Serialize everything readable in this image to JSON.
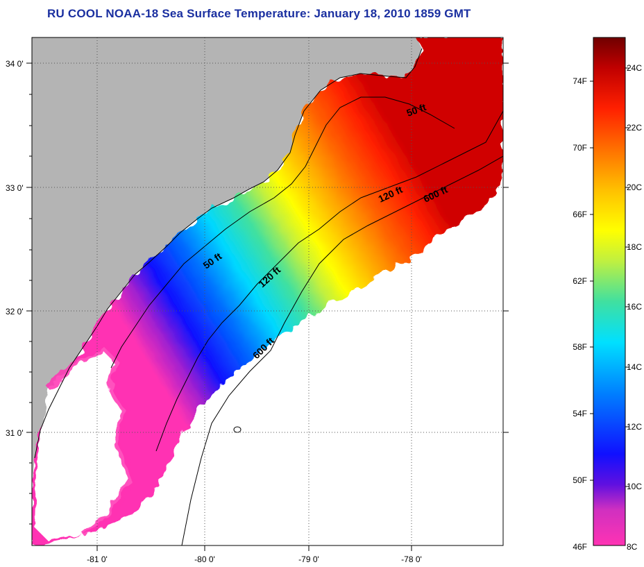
{
  "title": "RU COOL  NOAA-18  Sea Surface Temperature:  January 18, 2010 1859 GMT",
  "map": {
    "lat_ticks": [
      "34 0'",
      "33 0'",
      "32 0'",
      "31 0'"
    ],
    "lon_ticks": [
      "-81 0'",
      "-80 0'",
      "-79 0'",
      "-78 0'"
    ],
    "isobaths": [
      {
        "label": "50 ft"
      },
      {
        "label": "50 ft"
      },
      {
        "label": "120 ft"
      },
      {
        "label": "120 ft"
      },
      {
        "label": "600 ft"
      },
      {
        "label": "600 ft"
      }
    ],
    "land_color": "#b4b4b4",
    "no_data_color": "#ffffff"
  },
  "colorbar": {
    "fahrenheit_labels": [
      "74F",
      "70F",
      "66F",
      "62F",
      "58F",
      "54F",
      "50F",
      "46F"
    ],
    "celsius_labels": [
      "24C",
      "22C",
      "20C",
      "18C",
      "16C",
      "14C",
      "12C",
      "10C",
      "8C"
    ],
    "colors": [
      "#ff33b3",
      "#a030c0",
      "#1010ff",
      "#0080ff",
      "#00e0ff",
      "#40e0a0",
      "#c0f040",
      "#ffff00",
      "#ffc000",
      "#ff7000",
      "#ff2000",
      "#b00000",
      "#700000"
    ]
  }
}
